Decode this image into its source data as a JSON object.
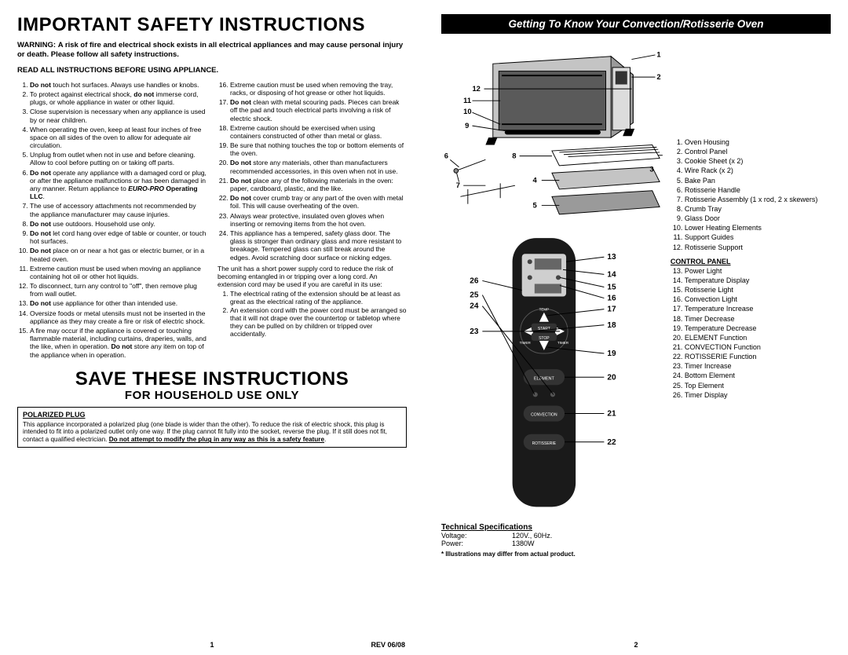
{
  "left": {
    "title": "IMPORTANT SAFETY INSTRUCTIONS",
    "warning_label": "WARNING:",
    "warning_text": "A risk of fire and electrical shock exists in all electrical appliances and may cause personal injury or death. Please follow all safety instructions.",
    "read_all": "READ ALL INSTRUCTIONS BEFORE USING APPLIANCE.",
    "list_a": [
      "<b>Do not</b> touch hot surfaces. Always use handles or knobs.",
      "To protect against electrical shock, <b>do not</b> immerse cord, plugs, or whole appliance in water or other liquid.",
      "Close supervision is necessary when any appliance is used by or near children.",
      "When operating the oven, keep at least four inches of free space on all sides of the oven to allow for adequate air circulation.",
      "Unplug from outlet when not in use and before cleaning. Allow to cool before putting on or taking off parts.",
      "<b>Do not</b> operate any appliance with a damaged cord or plug, or after the appliance malfunctions or has been damaged in any manner. Return appliance to <b><i>EURO-PRO</i> Operating LLC</b>.",
      "The use of accessory attachments not recommended by the appliance manufacturer may cause injuries.",
      "<b>Do not</b> use outdoors. Household use only.",
      "<b>Do not</b> let cord hang over edge of table or counter, or touch hot surfaces.",
      "<b>Do not</b> place on or near a hot gas or electric burner, or in a heated oven.",
      "Extreme caution must be used when moving an appliance containing hot oil or other hot liquids.",
      "To disconnect, turn any control to \"off\", then remove plug from wall outlet.",
      "<b>Do not</b> use appliance for other than intended use.",
      "Oversize foods or metal utensils must not be inserted in the appliance as they may create a fire or risk of electric shock.",
      "A fire may occur if the appliance is covered or touching flammable material, including curtains, draperies, walls, and the like, when in operation. <b>Do not</b> store any item on top of the appliance when in operation."
    ],
    "list_b": [
      "Extreme caution must be used when removing the tray, racks, or disposing of hot grease or other hot liquids.",
      "<b>Do not</b> clean with metal scouring pads. Pieces can break off the pad and touch electrical parts involving a risk of electric shock.",
      "Extreme caution should be exercised when using containers constructed of other than metal or glass.",
      "Be sure that nothing touches the top or bottom elements of the oven.",
      "<b>Do not</b> store any materials, other than manufacturers recommended accessories, in this oven when not in use.",
      "<b>Do not</b> place any of the following materials in the oven: paper, cardboard, plastic, and the like.",
      "<b>Do not</b> cover crumb tray or any part of the oven with metal foil. This will cause overheating of the oven.",
      "Always wear protective, insulated oven gloves when inserting or removing items from the hot oven.",
      "This appliance has a tempered, safety glass door. The glass is stronger than ordinary glass and more resistant to breakage. Tempered glass can still break around the edges. Avoid scratching door surface or nicking edges."
    ],
    "ext_intro": "The unit has a short power supply cord to reduce the risk of becoming entangled in or tripping over a long cord. An extension cord may be used if you are careful in its use:",
    "ext_list": [
      "The electrical rating of the extension should be at least as great as the electrical rating of the appliance.",
      "An extension cord with the power cord must be arranged so that it will not drape over the countertop or tabletop where they can be pulled on by children or tripped over accidentally."
    ],
    "save": "SAVE THESE INSTRUCTIONS",
    "household": "FOR HOUSEHOLD USE ONLY",
    "plug_title": "POLARIZED PLUG",
    "plug_text": "This appliance incorporated a polarized plug (one blade is wider than the other). To reduce the risk of electric shock, this plug is intended to fit into a polarized outlet only one way. If the plug cannot fit fully into the socket, reverse the plug. If it still does not fit, contact a qualified electrician. <b><u>Do not attempt to modify the plug in any way as this is a safety feature</u></b>.",
    "page_num": "1",
    "rev": "REV 06/08"
  },
  "right": {
    "banner": "Getting To Know Your Convection/Rotisserie Oven",
    "oven_callouts": {
      "1": "1",
      "2": "2",
      "3": "3",
      "4": "4",
      "5": "5",
      "6": "6",
      "7": "7",
      "8": "8",
      "9": "9",
      "10": "10",
      "11": "11",
      "12": "12"
    },
    "remote_callouts": {
      "13": "13",
      "14": "14",
      "15": "15",
      "16": "16",
      "17": "17",
      "18": "18",
      "19": "19",
      "20": "20",
      "21": "21",
      "22": "22",
      "23": "23",
      "24": "24",
      "25": "25",
      "26": "26"
    },
    "parts": [
      "Oven Housing",
      "Control Panel",
      "Cookie Sheet (x 2)",
      "Wire Rack (x 2)",
      "Bake Pan",
      "Rotisserie Handle",
      "Rotisserie Assembly (1 x rod, 2 x skewers)",
      "Crumb Tray",
      "Glass Door",
      "Lower Heating Elements",
      "Support Guides",
      "Rotisserie Support"
    ],
    "cp_title": "CONTROL PANEL",
    "cp_parts": [
      "Power Light",
      "Temperature Display",
      "Rotisserie Light",
      "Convection Light",
      "Temperature Increase",
      "Timer Decrease",
      "Temperature Decrease",
      "ELEMENT Function",
      "CONVECTION Function",
      "ROTISSERIE Function",
      "Timer Increase",
      "Bottom Element",
      "Top Element",
      "Timer Display"
    ],
    "tech_title": "Technical Specifications",
    "tech": {
      "voltage_label": "Voltage:",
      "voltage": "120V., 60Hz.",
      "power_label": "Power:",
      "power": "1380W"
    },
    "illus_note": "* Illustrations may differ from actual product.",
    "page_num": "2"
  },
  "style": {
    "background": "#ffffff",
    "text": "#000000",
    "banner_bg": "#000000",
    "banner_fg": "#ffffff",
    "diagram_fill": "#c4c4c4",
    "diagram_dark": "#6b6b6b",
    "remote_body": "#1a1a1a"
  }
}
